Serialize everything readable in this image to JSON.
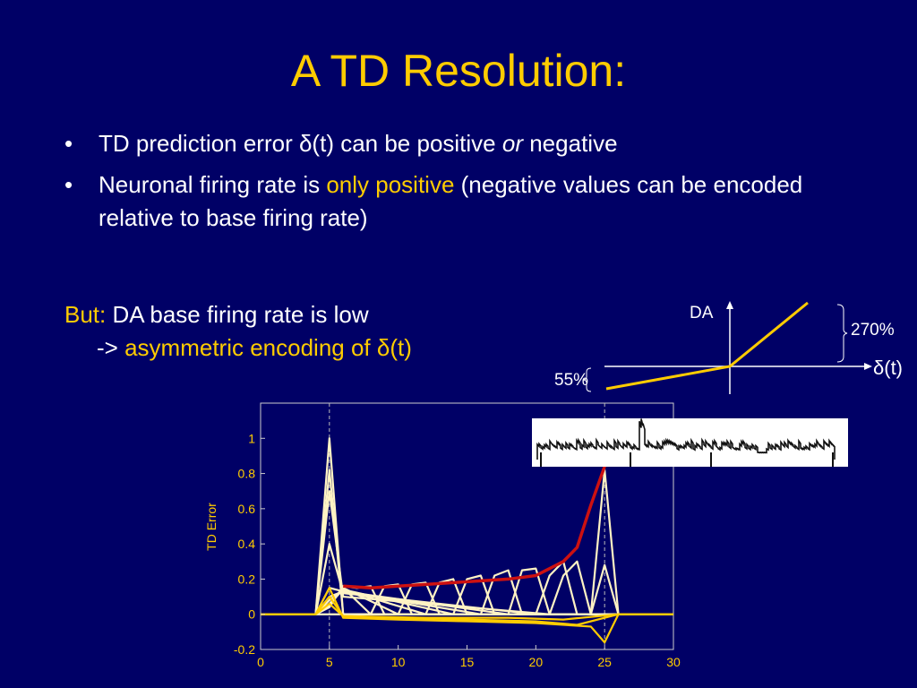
{
  "slide": {
    "title": "A TD Resolution:",
    "bullets": [
      {
        "dot": "•",
        "parts": [
          {
            "text": "TD prediction error δ(t) can be positive ",
            "style": "normal"
          },
          {
            "text": "or",
            "style": "italic"
          },
          {
            "text": " negative",
            "style": "normal"
          }
        ]
      },
      {
        "dot": "•",
        "parts": [
          {
            "text": "Neuronal firing rate is ",
            "style": "normal"
          },
          {
            "text": "only positive",
            "style": "highlight"
          },
          {
            "text": " (negative values can be encoded relative to base firing rate)",
            "style": "normal"
          }
        ]
      }
    ],
    "but": {
      "lead": "But:",
      "line1": " DA base firing rate is low",
      "arrow": "-> ",
      "line2": "asymmetric encoding of δ(t)"
    },
    "encoding_diagram": {
      "y_label": "DA",
      "x_label": "δ(t)",
      "positive_label": "270%",
      "negative_label": "55%"
    },
    "colors": {
      "background": "#000066",
      "accent": "#ffcc00",
      "red": "#cc1111",
      "cream": "#fff3c4"
    }
  },
  "chart_data": {
    "type": "line",
    "title": "",
    "xlabel": "",
    "ylabel": "TD Error",
    "xlim": [
      0,
      30
    ],
    "ylim": [
      -0.2,
      1.2
    ],
    "xticks": [
      0,
      5,
      10,
      15,
      20,
      25,
      30
    ],
    "yticks": [
      -0.2,
      0,
      0.2,
      0.4,
      0.6,
      0.8,
      1
    ],
    "ytick_labels": [
      "-0.2",
      "0",
      "0.2",
      "0.4",
      "0.6",
      "0.8",
      "1"
    ],
    "xtick_labels": [
      "0",
      "5",
      "10",
      "15",
      "20",
      "25",
      "30"
    ],
    "vlines": [
      5,
      25
    ],
    "series": [
      {
        "color": "#fff3c4",
        "x": [
          0,
          4,
          5,
          6,
          30
        ],
        "y": [
          0,
          0,
          1.0,
          0,
          0
        ]
      },
      {
        "color": "#fff3c4",
        "x": [
          0,
          4,
          5,
          6,
          23,
          24,
          25,
          26,
          30
        ],
        "y": [
          0,
          0,
          0.82,
          0,
          0,
          0,
          0.28,
          0,
          0
        ]
      },
      {
        "color": "#fff3c4",
        "x": [
          0,
          4,
          5,
          6,
          21,
          22,
          23,
          24,
          30
        ],
        "y": [
          0,
          0,
          0.7,
          0.1,
          0,
          0.22,
          0.3,
          0,
          0
        ]
      },
      {
        "color": "#fff3c4",
        "x": [
          0,
          4,
          5,
          6,
          20,
          21,
          22,
          23,
          30
        ],
        "y": [
          0,
          0,
          0.4,
          0.12,
          0,
          0.22,
          0.3,
          0,
          0
        ]
      },
      {
        "color": "#fff3c4",
        "x": [
          0,
          4,
          5,
          6,
          18,
          19,
          20,
          21,
          30
        ],
        "y": [
          0,
          0,
          0.15,
          0.13,
          0,
          0.25,
          0.26,
          0,
          0
        ]
      },
      {
        "color": "#fff3c4",
        "x": [
          0,
          4,
          5,
          6,
          16,
          17,
          18,
          19,
          30
        ],
        "y": [
          0,
          0,
          0.1,
          0.13,
          0,
          0.22,
          0.25,
          0,
          0
        ]
      },
      {
        "color": "#fff3c4",
        "x": [
          0,
          4,
          5,
          6,
          14,
          15,
          16,
          17,
          30
        ],
        "y": [
          0,
          0,
          0.08,
          0.14,
          0,
          0.2,
          0.22,
          0,
          0
        ]
      },
      {
        "color": "#fff3c4",
        "x": [
          0,
          4,
          5,
          6,
          12,
          13,
          14,
          15,
          30
        ],
        "y": [
          0,
          0,
          0.06,
          0.14,
          0,
          0.18,
          0.2,
          0,
          0
        ]
      },
      {
        "color": "#fff3c4",
        "x": [
          0,
          4,
          5,
          6,
          10,
          11,
          12,
          13,
          30
        ],
        "y": [
          0,
          0,
          0.05,
          0.15,
          0,
          0.17,
          0.18,
          0,
          0
        ]
      },
      {
        "color": "#fff3c4",
        "x": [
          0,
          4,
          5,
          6,
          8,
          9,
          10,
          11,
          30
        ],
        "y": [
          0,
          0,
          0.05,
          0.15,
          0,
          0.16,
          0.17,
          0,
          0
        ]
      },
      {
        "color": "#fff3c4",
        "x": [
          0,
          4,
          5,
          6,
          7,
          8,
          9,
          30
        ],
        "y": [
          0,
          0,
          0.04,
          0.16,
          0.15,
          0.16,
          0,
          0
        ]
      },
      {
        "color": "#fff3c4",
        "x": [
          0,
          4,
          24,
          25,
          26,
          30
        ],
        "y": [
          0,
          0,
          0,
          0.82,
          0,
          0
        ]
      },
      {
        "color": "#ffcc00",
        "x": [
          0,
          4,
          5,
          6,
          10,
          15,
          20,
          24,
          25,
          26,
          30
        ],
        "y": [
          0,
          0,
          0.15,
          -0.02,
          -0.03,
          -0.04,
          -0.05,
          -0.07,
          -0.16,
          0,
          0
        ]
      },
      {
        "color": "#ffcc00",
        "x": [
          0,
          4,
          5,
          6,
          10,
          15,
          20,
          23,
          26,
          30
        ],
        "y": [
          0,
          0,
          0.1,
          -0.01,
          -0.02,
          -0.03,
          -0.04,
          -0.06,
          0,
          0
        ]
      },
      {
        "color": "#ffcc00",
        "x": [
          0,
          4,
          5,
          6,
          12,
          18,
          22,
          26,
          30
        ],
        "y": [
          0,
          0,
          0.06,
          -0.01,
          -0.02,
          -0.02,
          -0.03,
          0,
          0
        ]
      },
      {
        "color": "#cc1111",
        "x": [
          6,
          8,
          10,
          12,
          14,
          16,
          18,
          20,
          21,
          22,
          23,
          24,
          25
        ],
        "y": [
          0.16,
          0.15,
          0.16,
          0.17,
          0.18,
          0.19,
          0.2,
          0.22,
          0.26,
          0.3,
          0.38,
          0.62,
          0.84
        ]
      }
    ]
  }
}
